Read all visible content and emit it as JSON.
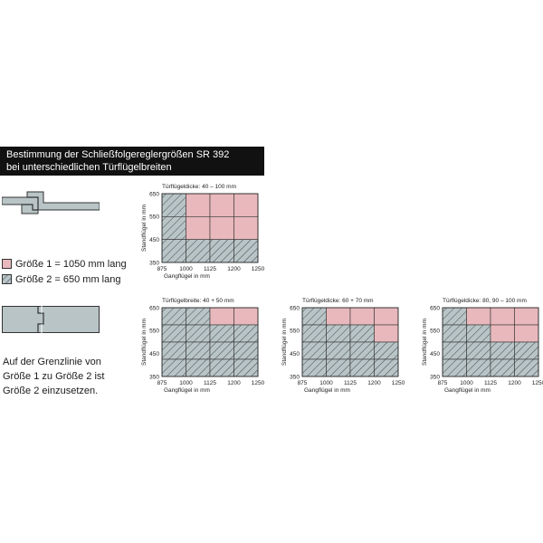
{
  "header": {
    "line1": "Bestimmung der Schließfolgereglergrößen SR 392",
    "line2": "bei unterschiedlichen Türflügelbreiten"
  },
  "colors": {
    "title_bg": "#111111",
    "pink": "#e8b8bc",
    "gray": "#b9c4c6",
    "hatch": "#3c4a4e",
    "cell_border": "#333333"
  },
  "icons": [
    "door-rebate-offset-icon",
    "door-rebate-step-icon"
  ],
  "legend": [
    {
      "label": "Größe 1 = 1050 mm lang",
      "kind": "pink"
    },
    {
      "label": "Größe 2 = 650 mm lang",
      "kind": "hatched"
    }
  ],
  "note": {
    "line1": "Auf der Grenzlinie von",
    "line2": "Größe 1 zu Größe 2 ist",
    "line3": "Größe 2 einzusetzen."
  },
  "chart_data": [
    {
      "type": "heatmap",
      "title": "Türflügeldicke: 40 – 100 mm",
      "xlabel": "Gangflügel in mm",
      "ylabel": "Standflügel in mm",
      "x_ticks": [
        "875",
        "1000",
        "1125",
        "1200",
        "1250"
      ],
      "y_ticks": [
        "650",
        "550",
        "450",
        "350"
      ],
      "grid_rows_top_to_bottom": [
        [
          2,
          1,
          1,
          1
        ],
        [
          2,
          1,
          1,
          1
        ],
        [
          2,
          2,
          2,
          2
        ]
      ]
    },
    {
      "type": "heatmap",
      "title": "Türflügelbreite: 40 + 50 mm",
      "xlabel": "Gangflügel in mm",
      "ylabel": "Standflügel in mm",
      "x_ticks": [
        "875",
        "1000",
        "1125",
        "1200",
        "1250"
      ],
      "y_ticks": [
        "650",
        "550",
        "450",
        "350"
      ],
      "grid_rows_top_to_bottom": [
        [
          2,
          2,
          1,
          1
        ],
        [
          2,
          2,
          2,
          2
        ],
        [
          2,
          2,
          2,
          2
        ],
        [
          2,
          2,
          2,
          2
        ]
      ]
    },
    {
      "type": "heatmap",
      "title": "Türflügeldicke: 60 + 70 mm",
      "xlabel": "Gangflügel in mm",
      "ylabel": "Standflügel in mm",
      "x_ticks": [
        "875",
        "1000",
        "1125",
        "1200",
        "1250"
      ],
      "y_ticks": [
        "650",
        "550",
        "450",
        "350"
      ],
      "grid_rows_top_to_bottom": [
        [
          2,
          1,
          1,
          1
        ],
        [
          2,
          2,
          2,
          1
        ],
        [
          2,
          2,
          2,
          2
        ],
        [
          2,
          2,
          2,
          2
        ]
      ]
    },
    {
      "type": "heatmap",
      "title": "Türflügeldicke: 80, 90 – 100 mm",
      "xlabel": "Gangflügel in mm",
      "ylabel": "Standflügel in mm",
      "x_ticks": [
        "875",
        "1000",
        "1125",
        "1200",
        "1250"
      ],
      "y_ticks": [
        "650",
        "550",
        "450",
        "350"
      ],
      "grid_rows_top_to_bottom": [
        [
          2,
          1,
          1,
          1
        ],
        [
          2,
          2,
          1,
          1
        ],
        [
          2,
          2,
          2,
          2
        ],
        [
          2,
          2,
          2,
          2
        ]
      ]
    }
  ]
}
